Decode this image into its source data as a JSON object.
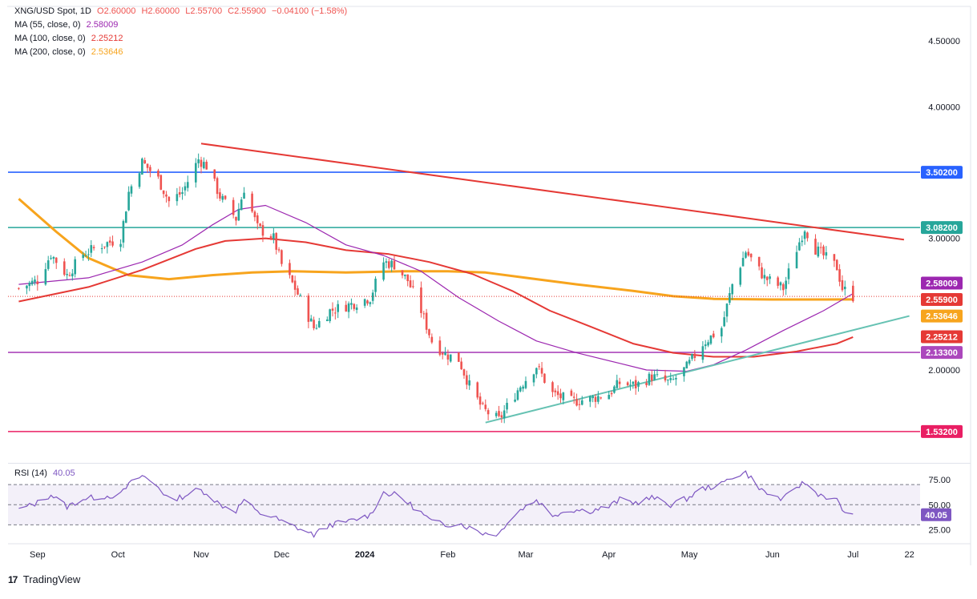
{
  "header": {
    "symbol": "XNG/USD Spot, 1D",
    "open": "O2.60000",
    "high": "H2.60000",
    "low": "L2.55700",
    "close": "C2.55900",
    "change": "−0.04100 (−1.58%)",
    "ma55_label": "MA (55, close, 0)",
    "ma55_value": "2.58009",
    "ma100_label": "MA (100, close, 0)",
    "ma100_value": "2.25212",
    "ma200_label": "MA (200, close, 0)",
    "ma200_value": "2.53646",
    "rsi_label": "RSI (14)",
    "rsi_value": "40.05"
  },
  "footer": {
    "brand": "TradingView"
  },
  "colors": {
    "up": "#26a69a",
    "down": "#ef5350",
    "ma55": "#9c27b0",
    "ma100": "#e53935",
    "ma200": "#f7a41d",
    "trendline_down": "#e53935",
    "trendline_up": "#66c2b3",
    "level_blue": "#2962ff",
    "level_green": "#26a69a",
    "level_purple": "#ab47bc",
    "level_pink": "#e91e63",
    "rsi": "#7e57c2"
  },
  "chart_data": {
    "type": "candlestick",
    "price_axis": {
      "ticks": [
        "4.50000",
        "4.00000",
        "3.00000",
        "2.00000"
      ],
      "ylim": [
        1.3,
        4.75
      ]
    },
    "time_axis": {
      "labels": [
        "Sep",
        "Oct",
        "Nov",
        "Dec",
        "2024",
        "Feb",
        "Mar",
        "Apr",
        "May",
        "Jun",
        "Jul",
        "22"
      ]
    },
    "horizontal_levels": [
      {
        "value": 3.502,
        "label": "3.50200",
        "color": "#2962ff"
      },
      {
        "value": 3.082,
        "label": "3.08200",
        "color": "#26a69a"
      },
      {
        "value": 2.133,
        "label": "2.13300",
        "color": "#ab47bc"
      },
      {
        "value": 1.532,
        "label": "1.53200",
        "color": "#e91e63"
      }
    ],
    "current_value_labels": [
      {
        "label": "2.58009",
        "color": "#9c27b0"
      },
      {
        "label": "2.55900",
        "color": "#e53935"
      },
      {
        "label": "2.53646",
        "color": "#f7a41d"
      },
      {
        "label": "2.25212",
        "color": "#e53935"
      }
    ],
    "trendlines": [
      {
        "name": "descending",
        "from": [
          "2023-11-01",
          3.72
        ],
        "to": [
          "2024-07-20",
          2.99
        ]
      },
      {
        "name": "ascending",
        "from": [
          "2024-02-15",
          1.6
        ],
        "to": [
          "2024-07-22",
          2.41
        ]
      }
    ],
    "ma_anchors": {
      "ma55": [
        [
          "2023-08-25",
          2.65
        ],
        [
          "2023-09-20",
          2.7
        ],
        [
          "2023-10-10",
          2.82
        ],
        [
          "2023-10-25",
          2.95
        ],
        [
          "2023-11-05",
          3.1
        ],
        [
          "2023-11-15",
          3.22
        ],
        [
          "2023-11-25",
          3.25
        ],
        [
          "2023-12-10",
          3.12
        ],
        [
          "2023-12-25",
          2.95
        ],
        [
          "2024-01-08",
          2.87
        ],
        [
          "2024-01-22",
          2.75
        ],
        [
          "2024-02-05",
          2.55
        ],
        [
          "2024-02-20",
          2.37
        ],
        [
          "2024-03-05",
          2.22
        ],
        [
          "2024-03-20",
          2.13
        ],
        [
          "2024-04-05",
          2.05
        ],
        [
          "2024-04-15",
          2.0
        ],
        [
          "2024-04-30",
          1.99
        ],
        [
          "2024-05-10",
          2.04
        ],
        [
          "2024-05-22",
          2.15
        ],
        [
          "2024-06-05",
          2.3
        ],
        [
          "2024-06-20",
          2.45
        ],
        [
          "2024-07-01",
          2.58
        ]
      ],
      "ma100": [
        [
          "2023-08-25",
          2.52
        ],
        [
          "2023-09-20",
          2.63
        ],
        [
          "2023-10-10",
          2.76
        ],
        [
          "2023-10-30",
          2.92
        ],
        [
          "2023-11-10",
          2.98
        ],
        [
          "2023-11-25",
          3.0
        ],
        [
          "2023-12-10",
          2.97
        ],
        [
          "2023-12-25",
          2.91
        ],
        [
          "2024-01-10",
          2.88
        ],
        [
          "2024-01-25",
          2.82
        ],
        [
          "2024-02-10",
          2.73
        ],
        [
          "2024-02-25",
          2.6
        ],
        [
          "2024-03-10",
          2.45
        ],
        [
          "2024-03-25",
          2.33
        ],
        [
          "2024-04-10",
          2.2
        ],
        [
          "2024-04-25",
          2.13
        ],
        [
          "2024-05-10",
          2.1
        ],
        [
          "2024-05-25",
          2.1
        ],
        [
          "2024-06-10",
          2.14
        ],
        [
          "2024-06-25",
          2.2
        ],
        [
          "2024-07-01",
          2.25
        ]
      ],
      "ma200": [
        [
          "2023-08-25",
          3.3
        ],
        [
          "2023-09-08",
          3.05
        ],
        [
          "2023-09-20",
          2.85
        ],
        [
          "2023-10-05",
          2.72
        ],
        [
          "2023-10-20",
          2.69
        ],
        [
          "2023-11-05",
          2.72
        ],
        [
          "2023-11-20",
          2.74
        ],
        [
          "2023-12-05",
          2.75
        ],
        [
          "2023-12-25",
          2.74
        ],
        [
          "2024-01-15",
          2.75
        ],
        [
          "2024-02-01",
          2.75
        ],
        [
          "2024-02-15",
          2.74
        ],
        [
          "2024-03-01",
          2.7
        ],
        [
          "2024-03-20",
          2.65
        ],
        [
          "2024-04-10",
          2.6
        ],
        [
          "2024-04-25",
          2.56
        ],
        [
          "2024-05-10",
          2.54
        ],
        [
          "2024-06-01",
          2.535
        ],
        [
          "2024-06-20",
          2.535
        ],
        [
          "2024-07-01",
          2.536
        ]
      ]
    },
    "close_path": [
      [
        "2023-08-25",
        2.62
      ],
      [
        "2023-09-01",
        2.68
      ],
      [
        "2023-09-06",
        2.88
      ],
      [
        "2023-09-12",
        2.72
      ],
      [
        "2023-09-18",
        2.88
      ],
      [
        "2023-09-25",
        2.95
      ],
      [
        "2023-10-02",
        3.0
      ],
      [
        "2023-10-05",
        3.35
      ],
      [
        "2023-10-10",
        3.58
      ],
      [
        "2023-10-16",
        3.45
      ],
      [
        "2023-10-20",
        3.28
      ],
      [
        "2023-10-25",
        3.35
      ],
      [
        "2023-10-31",
        3.6
      ],
      [
        "2023-11-03",
        3.55
      ],
      [
        "2023-11-08",
        3.32
      ],
      [
        "2023-11-14",
        3.15
      ],
      [
        "2023-11-17",
        3.38
      ],
      [
        "2023-11-22",
        3.08
      ],
      [
        "2023-11-28",
        3.0
      ],
      [
        "2023-12-01",
        2.8
      ],
      [
        "2023-12-06",
        2.62
      ],
      [
        "2023-12-13",
        2.32
      ],
      [
        "2023-12-19",
        2.45
      ],
      [
        "2023-12-27",
        2.5
      ],
      [
        "2024-01-03",
        2.55
      ],
      [
        "2024-01-08",
        2.82
      ],
      [
        "2024-01-12",
        2.8
      ],
      [
        "2024-01-17",
        2.68
      ],
      [
        "2024-01-22",
        2.45
      ],
      [
        "2024-01-26",
        2.22
      ],
      [
        "2024-01-31",
        2.12
      ],
      [
        "2024-02-05",
        2.08
      ],
      [
        "2024-02-09",
        1.88
      ],
      [
        "2024-02-14",
        1.7
      ],
      [
        "2024-02-20",
        1.62
      ],
      [
        "2024-02-23",
        1.72
      ],
      [
        "2024-02-28",
        1.88
      ],
      [
        "2024-03-05",
        2.03
      ],
      [
        "2024-03-11",
        1.82
      ],
      [
        "2024-03-18",
        1.76
      ],
      [
        "2024-03-25",
        1.78
      ],
      [
        "2024-04-01",
        1.82
      ],
      [
        "2024-04-05",
        1.9
      ],
      [
        "2024-04-11",
        1.88
      ],
      [
        "2024-04-17",
        1.95
      ],
      [
        "2024-04-24",
        1.9
      ],
      [
        "2024-04-30",
        2.02
      ],
      [
        "2024-05-06",
        2.2
      ],
      [
        "2024-05-13",
        2.32
      ],
      [
        "2024-05-17",
        2.65
      ],
      [
        "2024-05-22",
        2.9
      ],
      [
        "2024-05-29",
        2.7
      ],
      [
        "2024-06-05",
        2.62
      ],
      [
        "2024-06-10",
        2.92
      ],
      [
        "2024-06-13",
        3.08
      ],
      [
        "2024-06-17",
        2.92
      ],
      [
        "2024-06-21",
        2.85
      ],
      [
        "2024-06-25",
        2.78
      ],
      [
        "2024-06-27",
        2.62
      ],
      [
        "2024-07-01",
        2.559
      ]
    ],
    "rsi": {
      "axis_ticks": [
        "75.00",
        "50.00",
        "25.00"
      ],
      "levels": [
        70,
        50,
        30
      ],
      "ylim": [
        12,
        90
      ],
      "path": [
        [
          "2023-08-25",
          45
        ],
        [
          "2023-09-01",
          52
        ],
        [
          "2023-09-06",
          60
        ],
        [
          "2023-09-12",
          48
        ],
        [
          "2023-09-18",
          56
        ],
        [
          "2023-09-25",
          58
        ],
        [
          "2023-10-02",
          60
        ],
        [
          "2023-10-05",
          70
        ],
        [
          "2023-10-10",
          79
        ],
        [
          "2023-10-16",
          68
        ],
        [
          "2023-10-20",
          55
        ],
        [
          "2023-10-25",
          58
        ],
        [
          "2023-10-31",
          65
        ],
        [
          "2023-11-03",
          62
        ],
        [
          "2023-11-08",
          50
        ],
        [
          "2023-11-14",
          44
        ],
        [
          "2023-11-17",
          55
        ],
        [
          "2023-11-22",
          42
        ],
        [
          "2023-11-28",
          38
        ],
        [
          "2023-12-01",
          33
        ],
        [
          "2023-12-06",
          28
        ],
        [
          "2023-12-13",
          20
        ],
        [
          "2023-12-19",
          30
        ],
        [
          "2023-12-27",
          34
        ],
        [
          "2024-01-03",
          40
        ],
        [
          "2024-01-08",
          62
        ],
        [
          "2024-01-12",
          60
        ],
        [
          "2024-01-17",
          52
        ],
        [
          "2024-01-22",
          42
        ],
        [
          "2024-01-26",
          33
        ],
        [
          "2024-01-31",
          30
        ],
        [
          "2024-02-05",
          32
        ],
        [
          "2024-02-09",
          27
        ],
        [
          "2024-02-14",
          22
        ],
        [
          "2024-02-20",
          21
        ],
        [
          "2024-02-23",
          33
        ],
        [
          "2024-02-28",
          45
        ],
        [
          "2024-03-05",
          55
        ],
        [
          "2024-03-11",
          40
        ],
        [
          "2024-03-18",
          45
        ],
        [
          "2024-03-25",
          44
        ],
        [
          "2024-04-01",
          48
        ],
        [
          "2024-04-05",
          55
        ],
        [
          "2024-04-11",
          52
        ],
        [
          "2024-04-17",
          57
        ],
        [
          "2024-04-24",
          50
        ],
        [
          "2024-04-30",
          56
        ],
        [
          "2024-05-06",
          66
        ],
        [
          "2024-05-13",
          70
        ],
        [
          "2024-05-17",
          78
        ],
        [
          "2024-05-22",
          82
        ],
        [
          "2024-05-29",
          62
        ],
        [
          "2024-06-05",
          55
        ],
        [
          "2024-06-10",
          68
        ],
        [
          "2024-06-13",
          72
        ],
        [
          "2024-06-17",
          62
        ],
        [
          "2024-06-21",
          58
        ],
        [
          "2024-06-25",
          54
        ],
        [
          "2024-06-27",
          45
        ],
        [
          "2024-07-01",
          40.05
        ]
      ]
    }
  }
}
